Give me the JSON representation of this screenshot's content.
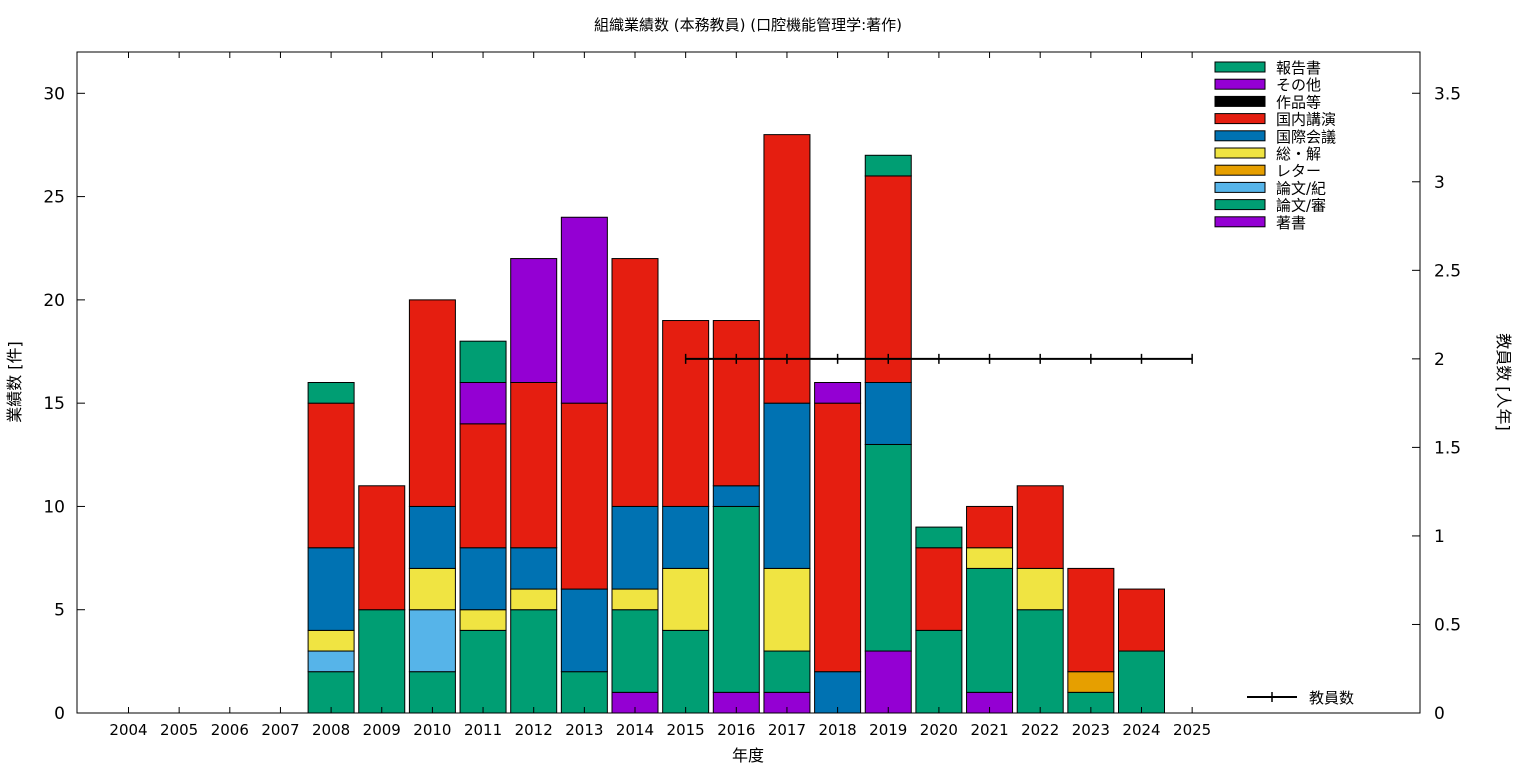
{
  "chart_data": {
    "type": "bar",
    "stacked": true,
    "title": "組織業績数 (本務教員) (口腔機能管理学:著作)",
    "xlabel": "年度",
    "ylabel": "業績数 [件]",
    "y2label": "教員数 [人年]",
    "categories": [
      "2004",
      "2005",
      "2006",
      "2007",
      "2008",
      "2009",
      "2010",
      "2011",
      "2012",
      "2013",
      "2014",
      "2015",
      "2016",
      "2017",
      "2018",
      "2019",
      "2020",
      "2021",
      "2022",
      "2023",
      "2024",
      "2025"
    ],
    "ylim": [
      0,
      32
    ],
    "yticks": [
      0,
      5,
      10,
      15,
      20,
      25,
      30
    ],
    "y2lim": [
      0,
      3.733
    ],
    "y2ticks": [
      0,
      0.5,
      1,
      1.5,
      2,
      2.5,
      3,
      3.5
    ],
    "y2tick_labels": [
      "0",
      "0.5",
      "1",
      "1.5",
      "2",
      "2.5",
      "3",
      "3.5"
    ],
    "legend_position": "top-right",
    "series": [
      {
        "name": "著書",
        "color": "#9400d3",
        "values": [
          0,
          0,
          0,
          0,
          0,
          0,
          0,
          0,
          0,
          0,
          1,
          0,
          1,
          1,
          0,
          3,
          0,
          1,
          0,
          0,
          0,
          0
        ]
      },
      {
        "name": "論文/審",
        "color": "#009e73",
        "values": [
          0,
          0,
          0,
          0,
          2,
          5,
          2,
          4,
          5,
          2,
          4,
          4,
          9,
          2,
          0,
          10,
          4,
          6,
          5,
          1,
          3,
          0
        ]
      },
      {
        "name": "論文/紀",
        "color": "#56b4e9",
        "values": [
          0,
          0,
          0,
          0,
          1,
          0,
          3,
          0,
          0,
          0,
          0,
          0,
          0,
          0,
          0,
          0,
          0,
          0,
          0,
          0,
          0,
          0
        ]
      },
      {
        "name": "レター",
        "color": "#e69f00",
        "values": [
          0,
          0,
          0,
          0,
          0,
          0,
          0,
          0,
          0,
          0,
          0,
          0,
          0,
          0,
          0,
          0,
          0,
          0,
          0,
          1,
          0,
          0
        ]
      },
      {
        "name": "総・解",
        "color": "#f0e442",
        "values": [
          0,
          0,
          0,
          0,
          1,
          0,
          2,
          1,
          1,
          0,
          1,
          3,
          0,
          4,
          0,
          0,
          0,
          1,
          2,
          0,
          0,
          0
        ]
      },
      {
        "name": "国際会議",
        "color": "#0072b2",
        "values": [
          0,
          0,
          0,
          0,
          4,
          0,
          3,
          3,
          2,
          4,
          4,
          3,
          1,
          8,
          2,
          3,
          0,
          0,
          0,
          0,
          0,
          0
        ]
      },
      {
        "name": "国内講演",
        "color": "#e51e10",
        "values": [
          0,
          0,
          0,
          0,
          7,
          6,
          10,
          6,
          8,
          9,
          12,
          9,
          8,
          13,
          13,
          10,
          4,
          2,
          4,
          5,
          3,
          0
        ]
      },
      {
        "name": "作品等",
        "color": "#000000",
        "values": [
          0,
          0,
          0,
          0,
          0,
          0,
          0,
          0,
          0,
          0,
          0,
          0,
          0,
          0,
          0,
          0,
          0,
          0,
          0,
          0,
          0,
          0
        ]
      },
      {
        "name": "その他",
        "color": "#9400d3",
        "values": [
          0,
          0,
          0,
          0,
          0,
          0,
          0,
          2,
          6,
          9,
          0,
          0,
          0,
          0,
          1,
          0,
          0,
          0,
          0,
          0,
          0,
          0
        ]
      },
      {
        "name": "報告書",
        "color": "#009e73",
        "values": [
          0,
          0,
          0,
          0,
          1,
          0,
          0,
          2,
          0,
          0,
          0,
          0,
          0,
          0,
          0,
          1,
          1,
          0,
          0,
          0,
          0,
          0
        ]
      }
    ],
    "line_series": {
      "name": "教員数",
      "color": "#000000",
      "axis": "y2",
      "x": [
        "2015",
        "2016",
        "2017",
        "2018",
        "2019",
        "2020",
        "2021",
        "2022",
        "2023",
        "2024",
        "2025"
      ],
      "values": [
        2,
        2,
        2,
        2,
        2,
        2,
        2,
        2,
        2,
        2,
        2
      ]
    }
  }
}
